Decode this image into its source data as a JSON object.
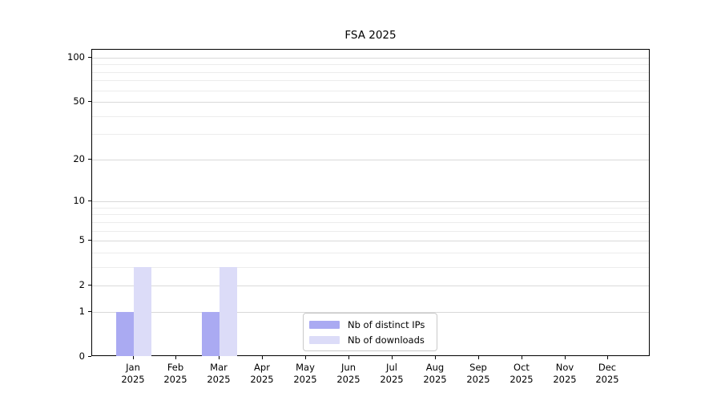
{
  "chart_data": {
    "type": "bar",
    "title": "FSA 2025",
    "categories": [
      "Jan",
      "Feb",
      "Mar",
      "Apr",
      "May",
      "Jun",
      "Jul",
      "Aug",
      "Sep",
      "Oct",
      "Nov",
      "Dec"
    ],
    "category_year": "2025",
    "series": [
      {
        "name": "Nb of distinct IPs",
        "color": "#aaaaf2",
        "values": [
          1,
          0,
          1,
          0,
          0,
          0,
          0,
          0,
          0,
          0,
          0,
          0
        ]
      },
      {
        "name": "Nb of downloads",
        "color": "#dcdcf8",
        "values": [
          3,
          0,
          3,
          0,
          0,
          0,
          0,
          0,
          0,
          0,
          0,
          0
        ]
      }
    ],
    "xlabel": "",
    "ylabel": "",
    "yscale": "log1p",
    "ylim": [
      0,
      113
    ],
    "yticks": [
      0,
      1,
      2,
      5,
      10,
      20,
      50,
      100
    ],
    "yticks_minor": [
      3,
      4,
      6,
      7,
      8,
      9,
      30,
      40,
      60,
      70,
      80,
      90
    ],
    "grid": "horizontal",
    "legend_position": "lower-center",
    "colors": {
      "major_grid": "#d9d9d9",
      "minor_grid": "#ececec",
      "axis": "#000000",
      "text": "#000000",
      "legend_border": "#c9c9c9",
      "background": "#ffffff"
    }
  }
}
